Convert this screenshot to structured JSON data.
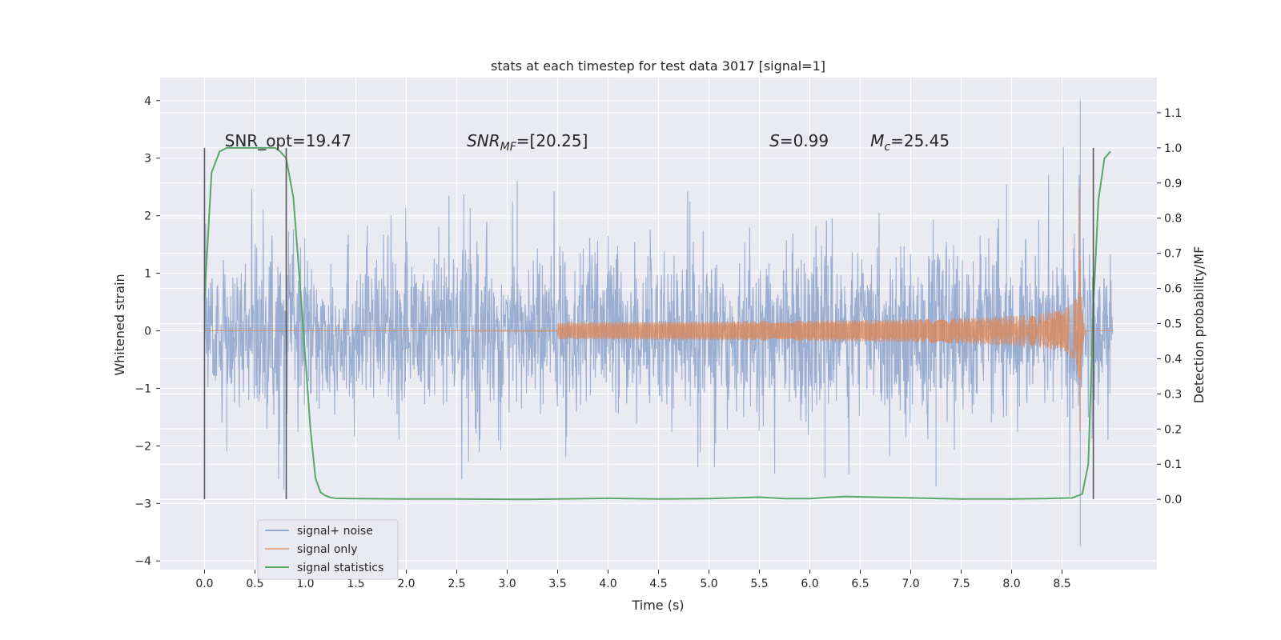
{
  "chart_data": {
    "type": "line",
    "title": "stats at each timestep for test data 3017 [signal=1]",
    "xlabel": "Time (s)",
    "ylabel_left": "Whitened strain",
    "ylabel_right": "Detection probability/MF",
    "xlim": [
      -0.44,
      9.44
    ],
    "ylim_left": [
      -4.15,
      4.4
    ],
    "ylim_right": [
      -0.2,
      1.2
    ],
    "x_ticks": [
      0.0,
      0.5,
      1.0,
      1.5,
      2.0,
      2.5,
      3.0,
      3.5,
      4.0,
      4.5,
      5.0,
      5.5,
      6.0,
      6.5,
      7.0,
      7.5,
      8.0,
      8.5
    ],
    "x_tick_labels": [
      "0.0",
      "0.5",
      "1.0",
      "1.5",
      "2.0",
      "2.5",
      "3.0",
      "3.5",
      "4.0",
      "4.5",
      "5.0",
      "5.5",
      "6.0",
      "6.5",
      "7.0",
      "7.5",
      "8.0",
      "8.5"
    ],
    "y_left_ticks": [
      4,
      3,
      2,
      1,
      0,
      -1,
      -2,
      -3,
      -4
    ],
    "y_left_tick_labels": [
      "4",
      "3",
      "2",
      "1",
      "0",
      "−1",
      "−2",
      "−3",
      "−4"
    ],
    "y_right_ticks": [
      1.1,
      1.0,
      0.9,
      0.8,
      0.7,
      0.6,
      0.5,
      0.4,
      0.3,
      0.2,
      0.1,
      0.0
    ],
    "y_right_tick_labels": [
      "1.1",
      "1.0",
      "0.9",
      "0.8",
      "0.7",
      "0.6",
      "0.5",
      "0.4",
      "0.3",
      "0.2",
      "0.1",
      "0.0"
    ],
    "grid": true,
    "legend_placement": "lower-left",
    "annotations": [
      {
        "text": "SNR_opt=19.47",
        "x": 0.2,
        "y_right": 1.0
      },
      {
        "text": "SNR_MF=[20.25]",
        "x": 2.6,
        "y_right": 1.0
      },
      {
        "text": "S=0.99",
        "x": 5.6,
        "y_right": 1.0
      },
      {
        "text": "M_c=25.45",
        "x": 6.6,
        "y_right": 1.0
      }
    ],
    "vertical_markers_x": [
      0.0,
      0.81,
      8.81
    ],
    "vertical_marker_range_right": [
      0.0,
      1.0
    ],
    "series": [
      {
        "name": "signal+ noise",
        "axis": "left",
        "color": "#4C72B0",
        "alpha": 0.5,
        "x_range": [
          0.0,
          9.0
        ],
        "envelope_typical": 1.3,
        "spikes": [
          {
            "x": 8.68,
            "y": 4.02
          },
          {
            "x": 8.68,
            "y": -3.75
          },
          {
            "x": 2.57,
            "y": 2.37
          },
          {
            "x": 3.1,
            "y": 2.6
          },
          {
            "x": 7.95,
            "y": 2.55
          },
          {
            "x": 6.15,
            "y": -2.55
          },
          {
            "x": 7.25,
            "y": -2.7
          },
          {
            "x": 0.22,
            "y": -2.1
          }
        ]
      },
      {
        "name": "signal only",
        "axis": "left",
        "color": "#DD8452",
        "x_range": [
          0.0,
          9.0
        ],
        "chirp_peak_time": 8.67,
        "peak_amplitude": 2.5
      },
      {
        "name": "signal statistics",
        "axis": "right",
        "color": "#55A868",
        "x": [
          0.0,
          0.07,
          0.15,
          0.22,
          0.3,
          0.4,
          0.5,
          0.6,
          0.7,
          0.75,
          0.81,
          0.88,
          0.95,
          1.0,
          1.05,
          1.1,
          1.15,
          1.2,
          1.25,
          1.3,
          1.5,
          2.0,
          2.5,
          3.0,
          3.25,
          3.5,
          4.0,
          4.5,
          5.0,
          5.5,
          5.75,
          6.0,
          6.15,
          6.35,
          6.5,
          7.0,
          7.5,
          8.0,
          8.3,
          8.6,
          8.7,
          8.76,
          8.81,
          8.86,
          8.92,
          8.98
        ],
        "y": [
          0.57,
          0.93,
          0.99,
          1.0,
          1.0,
          1.0,
          1.0,
          1.0,
          1.0,
          0.99,
          0.97,
          0.86,
          0.6,
          0.4,
          0.2,
          0.06,
          0.02,
          0.01,
          0.005,
          0.003,
          0.002,
          0.001,
          0.001,
          0.0,
          0.0,
          0.001,
          0.003,
          0.001,
          0.002,
          0.006,
          0.002,
          0.002,
          0.005,
          0.008,
          0.007,
          0.004,
          0.001,
          0.001,
          0.002,
          0.004,
          0.015,
          0.1,
          0.55,
          0.85,
          0.97,
          0.99
        ]
      }
    ]
  }
}
